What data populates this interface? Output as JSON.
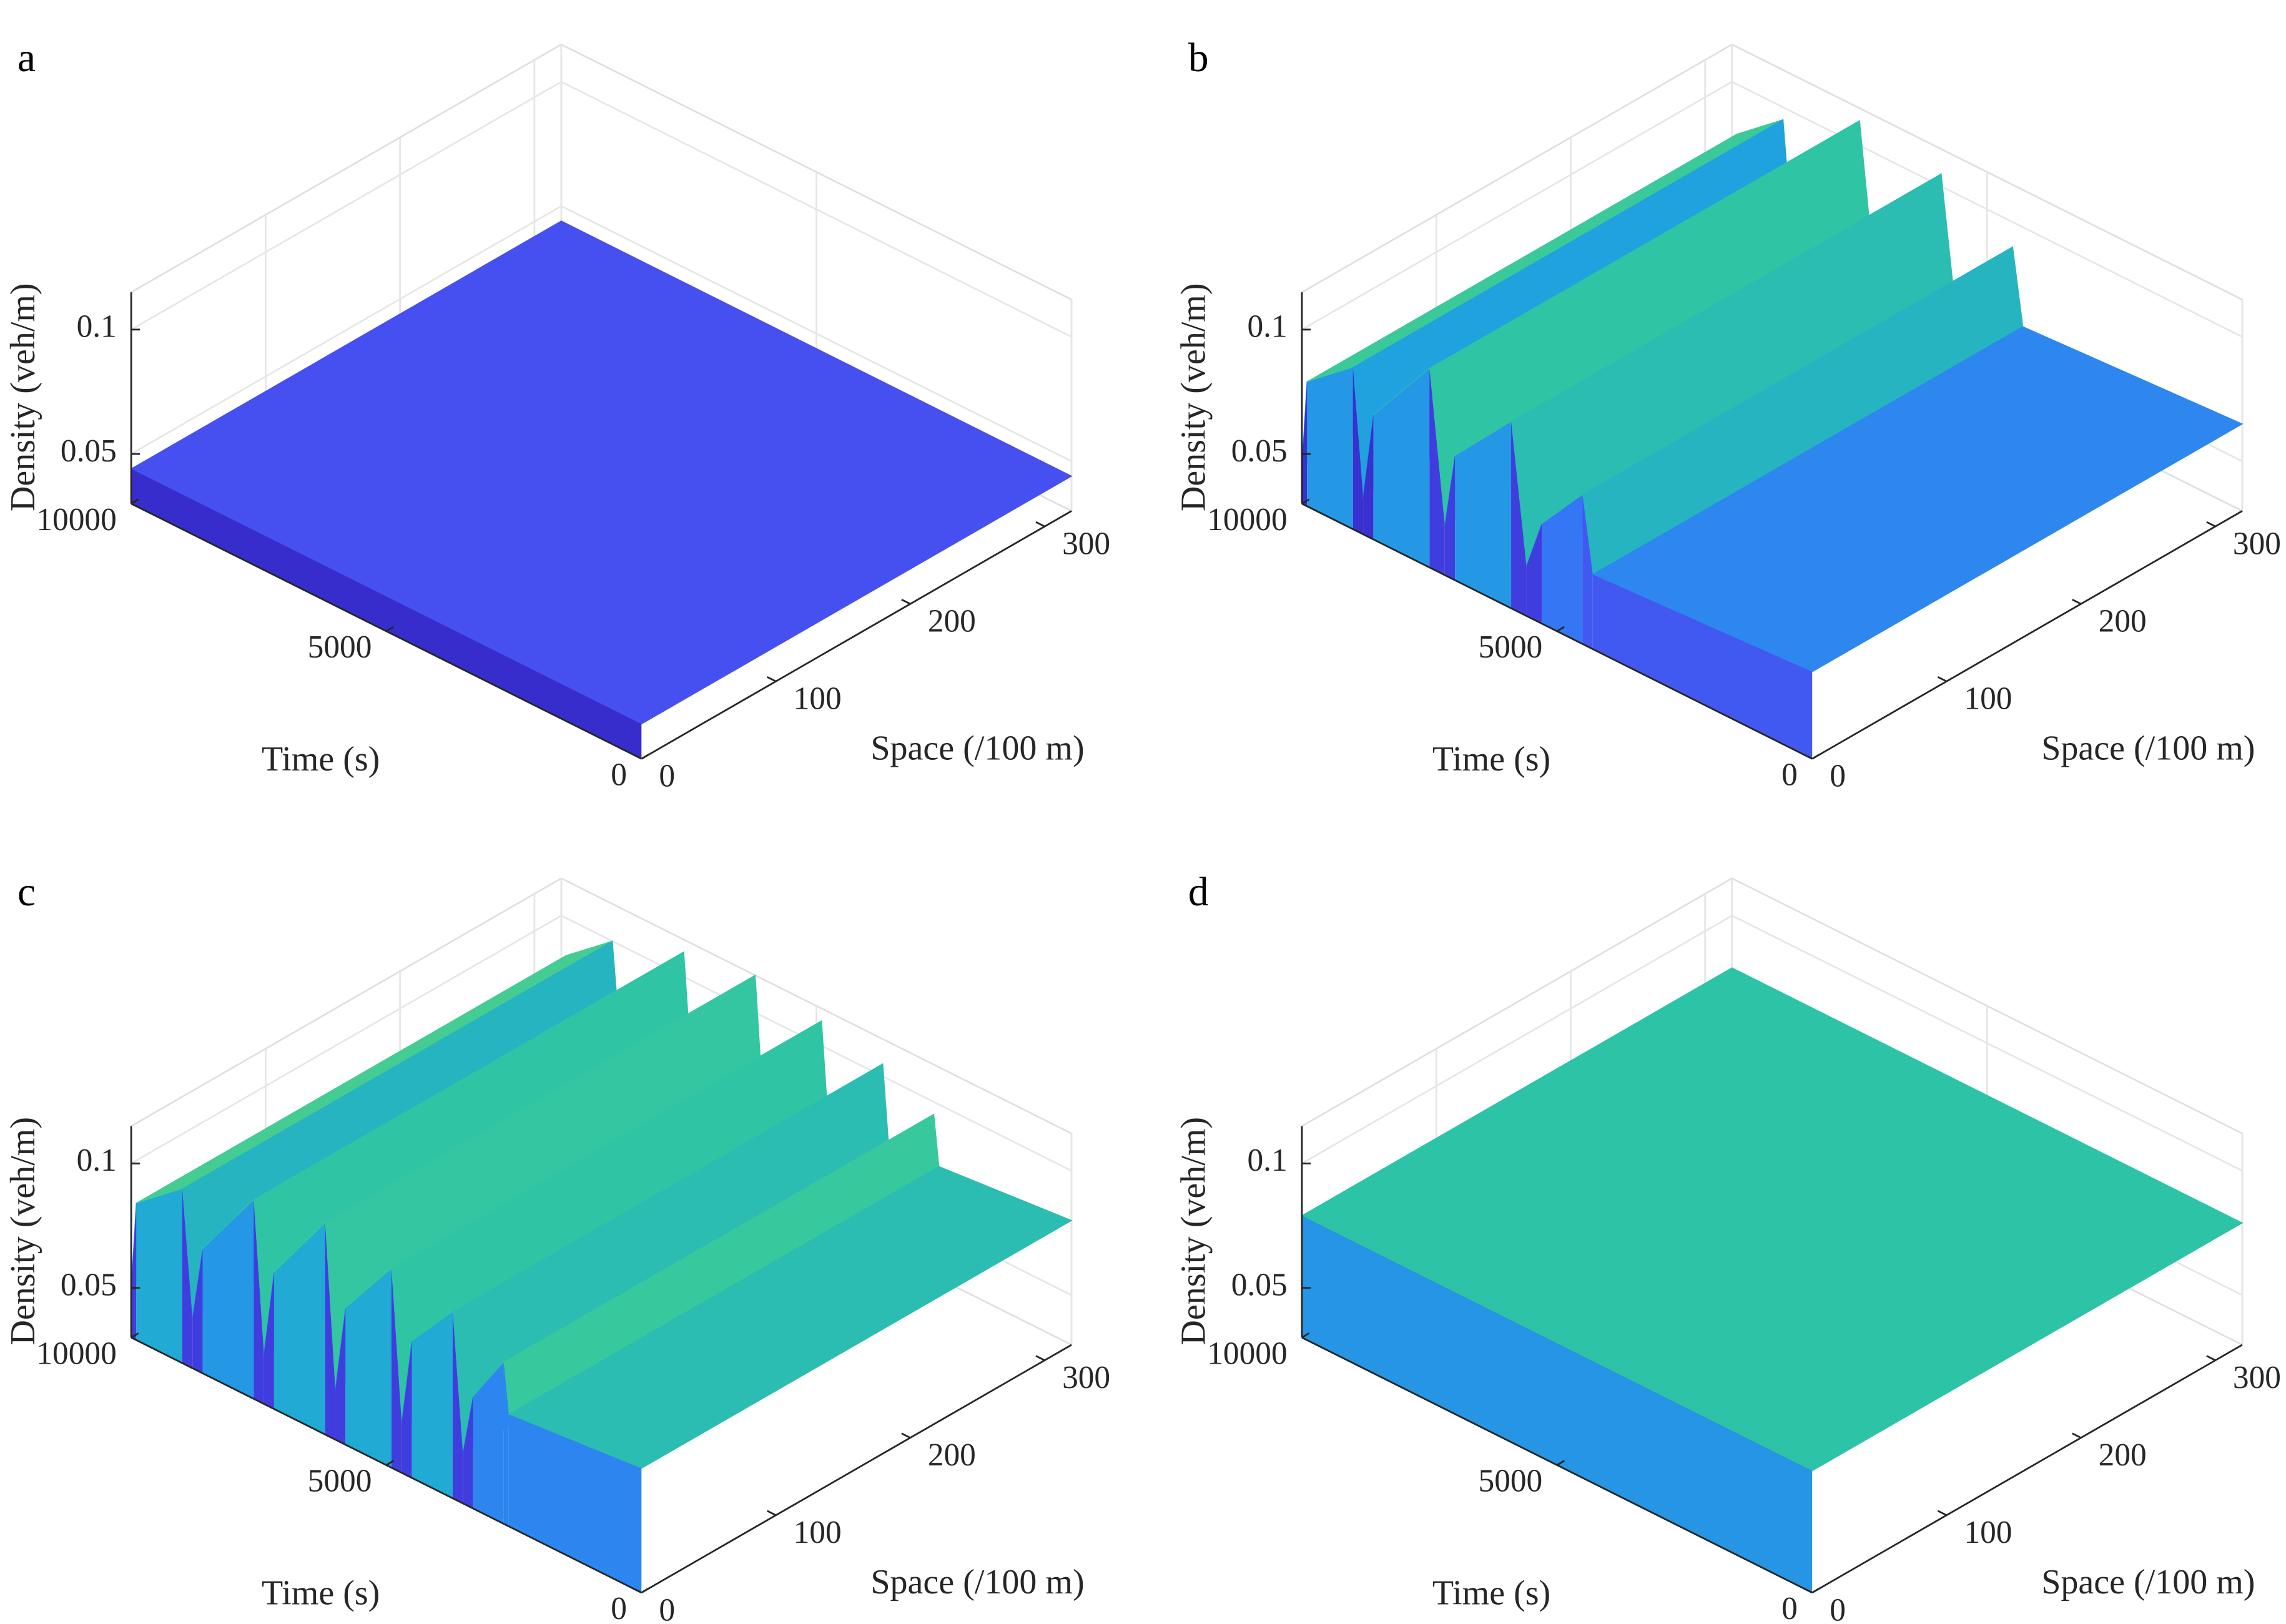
{
  "chart_data": [
    {
      "type": "surface",
      "panel": "a",
      "x_label": "Time (s)",
      "y_label": "Space (/100 m)",
      "z_label": "Density (veh/m)",
      "x": [
        10000,
        0
      ],
      "values": [
        0.044,
        0.044
      ],
      "xlim": [
        0,
        10000
      ],
      "xticks": [
        0,
        5000,
        10000
      ],
      "ylim": [
        0,
        320
      ],
      "yticks": [
        0,
        100,
        200,
        300
      ],
      "zlim": [
        0.03,
        0.115
      ],
      "zticks": [
        0.05,
        0.1
      ],
      "grid": true
    },
    {
      "type": "surface",
      "panel": "b",
      "x_label": "Time (s)",
      "y_label": "Space (/100 m)",
      "z_label": "Density (veh/m)",
      "x": [
        10000,
        9900,
        9000,
        8800,
        8600,
        7500,
        7200,
        7000,
        5900,
        5600,
        5300,
        4500,
        4300,
        0
      ],
      "values": [
        0.045,
        0.08,
        0.095,
        0.045,
        0.08,
        0.11,
        0.05,
        0.08,
        0.105,
        0.05,
        0.07,
        0.09,
        0.06,
        0.065
      ],
      "xlim": [
        0,
        10000
      ],
      "xticks": [
        0,
        5000,
        10000
      ],
      "ylim": [
        0,
        320
      ],
      "yticks": [
        0,
        100,
        200,
        300
      ],
      "zlim": [
        0.03,
        0.115
      ],
      "zticks": [
        0.05,
        0.1
      ],
      "grid": true
    },
    {
      "type": "surface",
      "panel": "c",
      "x_label": "Time (s)",
      "y_label": "Space (/100 m)",
      "z_label": "Density (veh/m)",
      "x": [
        10000,
        9900,
        9000,
        8800,
        8600,
        7600,
        7400,
        7200,
        6200,
        6000,
        5800,
        4900,
        4700,
        4500,
        3700,
        3500,
        3300,
        2700,
        2600,
        0
      ],
      "values": [
        0.05,
        0.085,
        0.1,
        0.05,
        0.08,
        0.11,
        0.05,
        0.085,
        0.115,
        0.05,
        0.085,
        0.11,
        0.05,
        0.085,
        0.105,
        0.05,
        0.075,
        0.095,
        0.075,
        0.08
      ],
      "xlim": [
        0,
        10000
      ],
      "xticks": [
        0,
        5000,
        10000
      ],
      "ylim": [
        0,
        320
      ],
      "yticks": [
        0,
        100,
        200,
        300
      ],
      "zlim": [
        0.03,
        0.115
      ],
      "zticks": [
        0.05,
        0.1
      ],
      "grid": true
    },
    {
      "type": "surface",
      "panel": "d",
      "x_label": "Time (s)",
      "y_label": "Space (/100 m)",
      "z_label": "Density (veh/m)",
      "x": [
        10000,
        0
      ],
      "values": [
        0.079,
        0.079
      ],
      "xlim": [
        0,
        10000
      ],
      "xticks": [
        0,
        5000,
        10000
      ],
      "ylim": [
        0,
        320
      ],
      "yticks": [
        0,
        100,
        200,
        300
      ],
      "zlim": [
        0.03,
        0.115
      ],
      "zticks": [
        0.05,
        0.1
      ],
      "grid": true
    }
  ]
}
